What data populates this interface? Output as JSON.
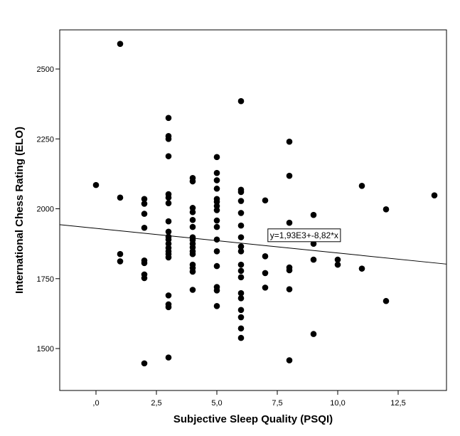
{
  "chart_data": {
    "type": "scatter",
    "title": "",
    "xlabel": "Subjective Sleep Quality (PSQI)",
    "ylabel": "International Chess Rating (ELO)",
    "xlim": [
      -1.5,
      14.5
    ],
    "ylim": [
      1350,
      2640
    ],
    "x_ticks": [
      0,
      2.5,
      5,
      7.5,
      10,
      12.5
    ],
    "x_tick_labels": [
      ",0",
      "2,5",
      "5,0",
      "7,5",
      "10,0",
      "12,5"
    ],
    "y_ticks": [
      1500,
      1750,
      2000,
      2250,
      2500
    ],
    "y_tick_labels": [
      "1500",
      "1750",
      "2000",
      "2250",
      "2500"
    ],
    "grid": false,
    "marker_color": "#000000",
    "fit_line": {
      "intercept": 1930,
      "slope": -8.82,
      "label": "y=1,93E3+-8,82*x",
      "label_anchor": [
        7.2,
        1895
      ]
    },
    "points": [
      {
        "x": 0,
        "y": 2085
      },
      {
        "x": 1,
        "y": 2590
      },
      {
        "x": 1,
        "y": 2040
      },
      {
        "x": 1,
        "y": 1838
      },
      {
        "x": 1,
        "y": 1812
      },
      {
        "x": 2,
        "y": 2035
      },
      {
        "x": 2,
        "y": 2018
      },
      {
        "x": 2,
        "y": 1982
      },
      {
        "x": 2,
        "y": 1932
      },
      {
        "x": 2,
        "y": 1815
      },
      {
        "x": 2,
        "y": 1806
      },
      {
        "x": 2,
        "y": 1765
      },
      {
        "x": 2,
        "y": 1752
      },
      {
        "x": 2,
        "y": 1447
      },
      {
        "x": 3,
        "y": 2325
      },
      {
        "x": 3,
        "y": 2260
      },
      {
        "x": 3,
        "y": 2250
      },
      {
        "x": 3,
        "y": 2188
      },
      {
        "x": 3,
        "y": 2052
      },
      {
        "x": 3,
        "y": 2040
      },
      {
        "x": 3,
        "y": 2020
      },
      {
        "x": 3,
        "y": 1955
      },
      {
        "x": 3,
        "y": 1918
      },
      {
        "x": 3,
        "y": 1900
      },
      {
        "x": 3,
        "y": 1890
      },
      {
        "x": 3,
        "y": 1875
      },
      {
        "x": 3,
        "y": 1860
      },
      {
        "x": 3,
        "y": 1848
      },
      {
        "x": 3,
        "y": 1838
      },
      {
        "x": 3,
        "y": 1826
      },
      {
        "x": 3,
        "y": 1690
      },
      {
        "x": 3,
        "y": 1658
      },
      {
        "x": 3,
        "y": 1648
      },
      {
        "x": 3,
        "y": 1468
      },
      {
        "x": 4,
        "y": 2110
      },
      {
        "x": 4,
        "y": 2098
      },
      {
        "x": 4,
        "y": 2003
      },
      {
        "x": 4,
        "y": 1988
      },
      {
        "x": 4,
        "y": 1960
      },
      {
        "x": 4,
        "y": 1935
      },
      {
        "x": 4,
        "y": 1898
      },
      {
        "x": 4,
        "y": 1888
      },
      {
        "x": 4,
        "y": 1875
      },
      {
        "x": 4,
        "y": 1862
      },
      {
        "x": 4,
        "y": 1848
      },
      {
        "x": 4,
        "y": 1838
      },
      {
        "x": 4,
        "y": 1800
      },
      {
        "x": 4,
        "y": 1788
      },
      {
        "x": 4,
        "y": 1775
      },
      {
        "x": 4,
        "y": 1710
      },
      {
        "x": 5,
        "y": 2185
      },
      {
        "x": 5,
        "y": 2128
      },
      {
        "x": 5,
        "y": 2102
      },
      {
        "x": 5,
        "y": 2072
      },
      {
        "x": 5,
        "y": 2035
      },
      {
        "x": 5,
        "y": 2025
      },
      {
        "x": 5,
        "y": 2010
      },
      {
        "x": 5,
        "y": 1995
      },
      {
        "x": 5,
        "y": 1958
      },
      {
        "x": 5,
        "y": 1935
      },
      {
        "x": 5,
        "y": 1890
      },
      {
        "x": 5,
        "y": 1848
      },
      {
        "x": 5,
        "y": 1795
      },
      {
        "x": 5,
        "y": 1720
      },
      {
        "x": 5,
        "y": 1708
      },
      {
        "x": 5,
        "y": 1652
      },
      {
        "x": 6,
        "y": 2385
      },
      {
        "x": 6,
        "y": 2068
      },
      {
        "x": 6,
        "y": 2060
      },
      {
        "x": 6,
        "y": 2028
      },
      {
        "x": 6,
        "y": 1985
      },
      {
        "x": 6,
        "y": 1940
      },
      {
        "x": 6,
        "y": 1898
      },
      {
        "x": 6,
        "y": 1865
      },
      {
        "x": 6,
        "y": 1848
      },
      {
        "x": 6,
        "y": 1800
      },
      {
        "x": 6,
        "y": 1778
      },
      {
        "x": 6,
        "y": 1755
      },
      {
        "x": 6,
        "y": 1698
      },
      {
        "x": 6,
        "y": 1680
      },
      {
        "x": 6,
        "y": 1638
      },
      {
        "x": 6,
        "y": 1612
      },
      {
        "x": 6,
        "y": 1572
      },
      {
        "x": 6,
        "y": 1538
      },
      {
        "x": 7,
        "y": 2030
      },
      {
        "x": 7,
        "y": 1830
      },
      {
        "x": 7,
        "y": 1770
      },
      {
        "x": 7,
        "y": 1718
      },
      {
        "x": 8,
        "y": 2240
      },
      {
        "x": 8,
        "y": 2118
      },
      {
        "x": 8,
        "y": 1950
      },
      {
        "x": 8,
        "y": 1790
      },
      {
        "x": 8,
        "y": 1780
      },
      {
        "x": 8,
        "y": 1712
      },
      {
        "x": 8,
        "y": 1458
      },
      {
        "x": 9,
        "y": 1978
      },
      {
        "x": 9,
        "y": 1875
      },
      {
        "x": 9,
        "y": 1818
      },
      {
        "x": 9,
        "y": 1552
      },
      {
        "x": 10,
        "y": 1818
      },
      {
        "x": 10,
        "y": 1800
      },
      {
        "x": 11,
        "y": 2082
      },
      {
        "x": 11,
        "y": 1786
      },
      {
        "x": 12,
        "y": 1998
      },
      {
        "x": 12,
        "y": 1670
      },
      {
        "x": 14,
        "y": 2048
      }
    ]
  }
}
